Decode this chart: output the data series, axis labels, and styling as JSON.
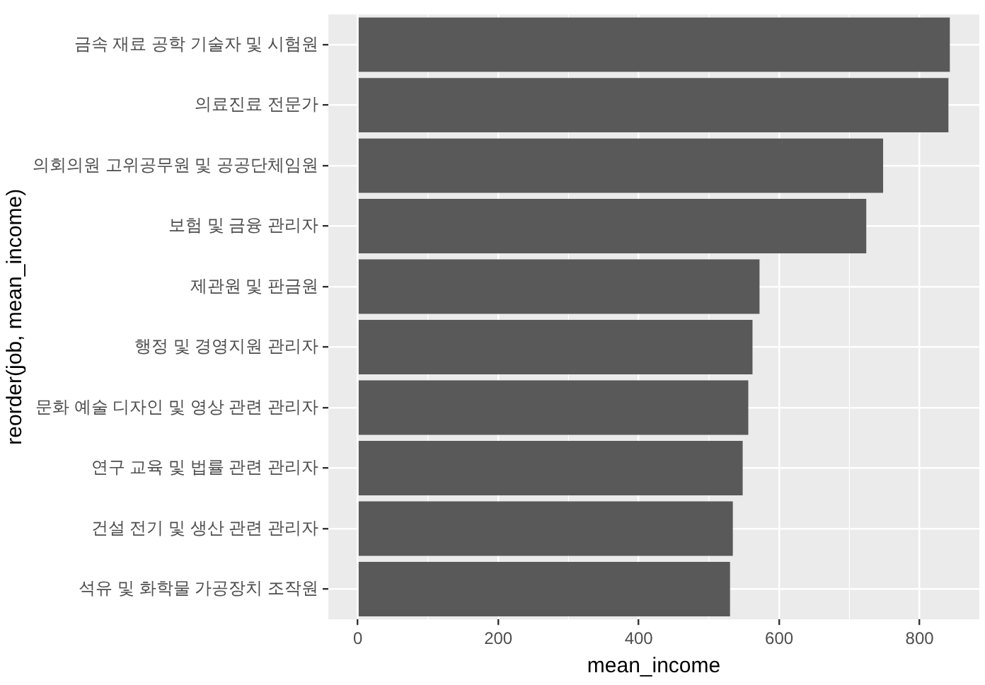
{
  "chart_data": {
    "type": "bar",
    "orientation": "horizontal",
    "xlabel": "mean_income",
    "ylabel": "reorder(job, mean_income)",
    "categories": [
      "금속 재료 공학 기술자 및 시험원",
      "의료진료 전문가",
      "의회의원 고위공무원 및 공공단체임원",
      "보험 및 금융 관리자",
      "제관원 및 판금원",
      "행정 및 경영지원 관리자",
      "문화 예술 디자인 및 영상 관련 관리자",
      "연구 교육 및 법률 관련 관리자",
      "건설 전기 및 생산 관련 관리자",
      "석유 및 화학물 가공장치 조작원"
    ],
    "values": [
      843,
      841,
      748,
      724,
      572,
      562,
      556,
      548,
      534,
      530
    ],
    "color": "#595959",
    "xlim": [
      -42,
      885
    ],
    "xticks": [
      0,
      200,
      400,
      600,
      800
    ],
    "grid": true,
    "legend": false
  }
}
